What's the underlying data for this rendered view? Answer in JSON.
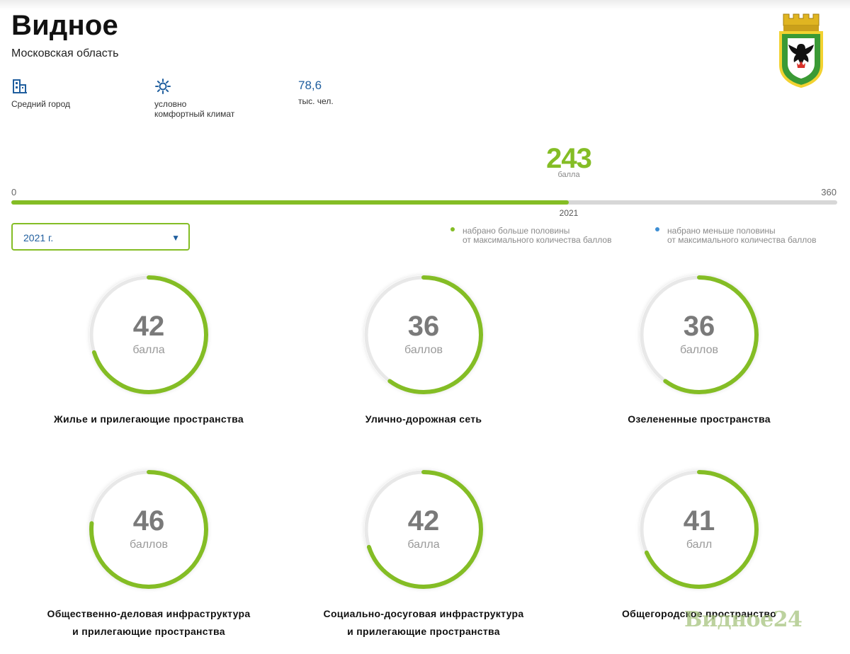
{
  "city": {
    "title": "Видное",
    "region": "Московская область"
  },
  "stats": {
    "size": {
      "icon": "building-icon",
      "label": "Средний город"
    },
    "climate": {
      "icon": "sun-icon",
      "label_line1": "условно",
      "label_line2": "комфортный климат"
    },
    "population": {
      "value": "78,6",
      "unit": "тыс. чел."
    }
  },
  "total": {
    "value": "243",
    "unit": "балла",
    "score": 243,
    "min": "0",
    "max": "360",
    "max_score": 360,
    "year": "2021"
  },
  "year_select": {
    "value": "2021 г.",
    "arrow": "▼"
  },
  "legend": {
    "above": {
      "line1": "набрано больше половины",
      "line2": "от максимального количества баллов",
      "color": "#84bd25"
    },
    "below": {
      "line1": "набрано меньше половины",
      "line2": "от максимального количества баллов",
      "color": "#3d8ed4"
    }
  },
  "colors": {
    "accent": "#84bd25",
    "blue": "#1f5e9e",
    "track": "#e8e8e8"
  },
  "categories": [
    {
      "value": "42",
      "score": 42,
      "max": 60,
      "unit": "балла",
      "title_line1": "Жилье и прилегающие пространства",
      "title_line2": ""
    },
    {
      "value": "36",
      "score": 36,
      "max": 60,
      "unit": "баллов",
      "title_line1": "Улично-дорожная сеть",
      "title_line2": ""
    },
    {
      "value": "36",
      "score": 36,
      "max": 60,
      "unit": "баллов",
      "title_line1": "Озелененные пространства",
      "title_line2": ""
    },
    {
      "value": "46",
      "score": 46,
      "max": 60,
      "unit": "баллов",
      "title_line1": "Общественно-деловая инфраструктура",
      "title_line2": "и прилегающие пространства"
    },
    {
      "value": "42",
      "score": 42,
      "max": 60,
      "unit": "балла",
      "title_line1": "Социально-досуговая инфраструктура",
      "title_line2": "и прилегающие пространства"
    },
    {
      "value": "41",
      "score": 41,
      "max": 60,
      "unit": "балл",
      "title_line1": "Общегородское пространство",
      "title_line2": ""
    }
  ],
  "watermark": "Видное24"
}
